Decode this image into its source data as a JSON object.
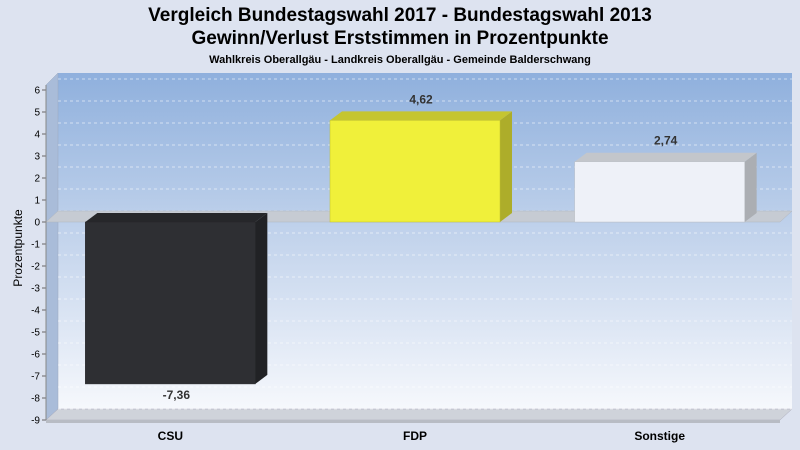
{
  "chart_data": {
    "type": "bar",
    "title": "Vergleich Bundestagswahl 2017 - Bundestagswahl 2013",
    "subtitle": "Gewinn/Verlust Erststimmen in Prozentpunkte",
    "subsubtitle": "Wahlkreis Oberallgäu - Landkreis Oberallgäu - Gemeinde Balderschwang",
    "ylabel": "Prozentpunkte",
    "ylim": [
      -9,
      6
    ],
    "yticks": [
      "6",
      "5",
      "4",
      "3",
      "2",
      "1",
      "0",
      "-1",
      "-2",
      "-3",
      "-4",
      "-5",
      "-6",
      "-7",
      "-8",
      "-9"
    ],
    "categories": [
      "CSU",
      "FDP",
      "Sonstige"
    ],
    "values": [
      -7.36,
      4.62,
      2.74
    ],
    "value_labels": [
      "-7,36",
      "4,62",
      "2,74"
    ],
    "colors": [
      "#2e2f33",
      "#f0f03a",
      "#eef1f8"
    ],
    "grid": true
  }
}
